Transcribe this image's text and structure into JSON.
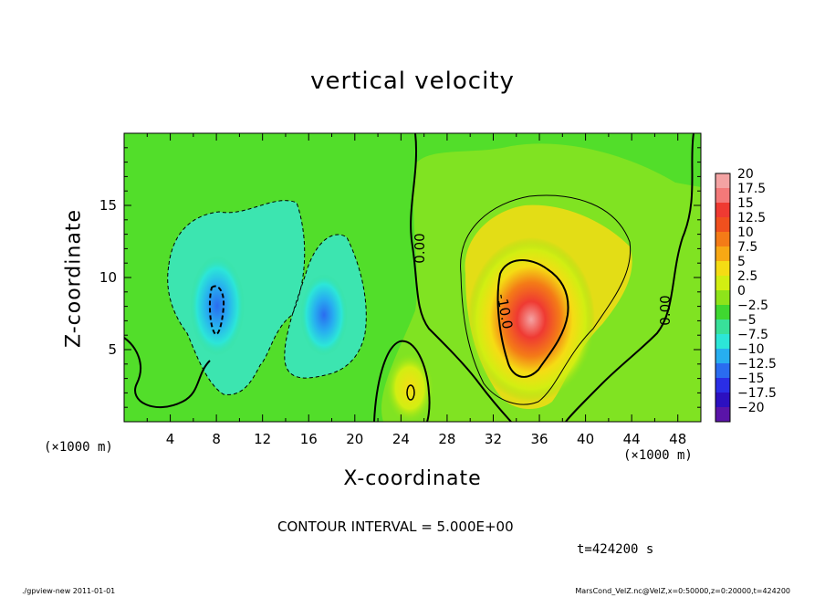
{
  "chart_data": {
    "type": "heatmap",
    "title": "vertical velocity",
    "xlabel": "X-coordinate",
    "ylabel": "Z-coordinate",
    "x_unit_left": "(×1000 m)",
    "x_unit_right": "(×1000 m)",
    "xlim": [
      0,
      50
    ],
    "ylim": [
      0,
      20
    ],
    "x_ticks": [
      4,
      8,
      12,
      16,
      20,
      24,
      28,
      32,
      36,
      40,
      44,
      48
    ],
    "x_tick_labels": [
      "4",
      "8",
      "12",
      "16",
      "20",
      "24",
      "28",
      "32",
      "36",
      "40",
      "44",
      "48"
    ],
    "y_ticks": [
      5,
      10,
      15
    ],
    "y_tick_labels": [
      "5",
      "10",
      "15"
    ],
    "contour_interval_text": "CONTOUR INTERVAL = 5.000E+00",
    "time_text": "t=424200 s",
    "contour_labels": [
      "0.00",
      "-10.0",
      "0.00"
    ],
    "features": [
      {
        "label": "updraft",
        "x": 35,
        "z": 7.5,
        "value": 15
      },
      {
        "label": "downdraft-left",
        "x": 8,
        "z": 8,
        "value": -10
      },
      {
        "label": "downdraft-mid",
        "x": 17,
        "z": 7,
        "value": -7.5
      },
      {
        "label": "small-updraft",
        "x": 24.5,
        "z": 2,
        "value": 7.5
      }
    ],
    "colorbar": {
      "labels": [
        "20",
        "17.5",
        "15",
        "12.5",
        "10",
        "7.5",
        "5",
        "2.5",
        "0",
        "−2.5",
        "−5",
        "−7.5",
        "−10",
        "−12.5",
        "−15",
        "−17.5",
        "−20"
      ],
      "colors": [
        "#f4a3a3",
        "#f37979",
        "#ef3a32",
        "#f0501e",
        "#f47b17",
        "#f8a814",
        "#f5dc14",
        "#d2ee12",
        "#8ee41a",
        "#3fd830",
        "#38e09a",
        "#2ce6d8",
        "#27aef0",
        "#2a6cf0",
        "#2a2ee6",
        "#2c10c0",
        "#5a14a8"
      ]
    }
  },
  "footer": {
    "left": "./gpview-new   2011-01-01",
    "right": "MarsCond_VelZ.nc@VelZ,x=0:50000,z=0:20000,t=424200"
  }
}
